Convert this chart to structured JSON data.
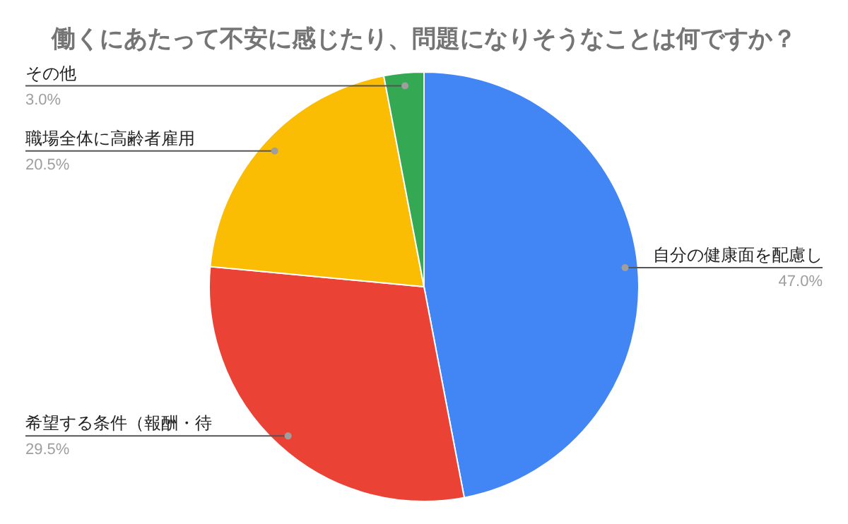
{
  "chart_data": {
    "type": "pie",
    "title": "働くにあたって不安に感じたり、問題になりそうなことは何ですか？",
    "categories": [
      "自分の健康面を配慮し",
      "希望する条件（報酬・待",
      "職場全体に高齢者雇用",
      "その他"
    ],
    "values": [
      47.0,
      29.5,
      20.5,
      3.0
    ],
    "value_labels": [
      "47.0%",
      "29.5%",
      "20.5%",
      "3.0%"
    ],
    "colors": [
      "#4285f4",
      "#ea4335",
      "#fbbc04",
      "#34a853"
    ]
  }
}
